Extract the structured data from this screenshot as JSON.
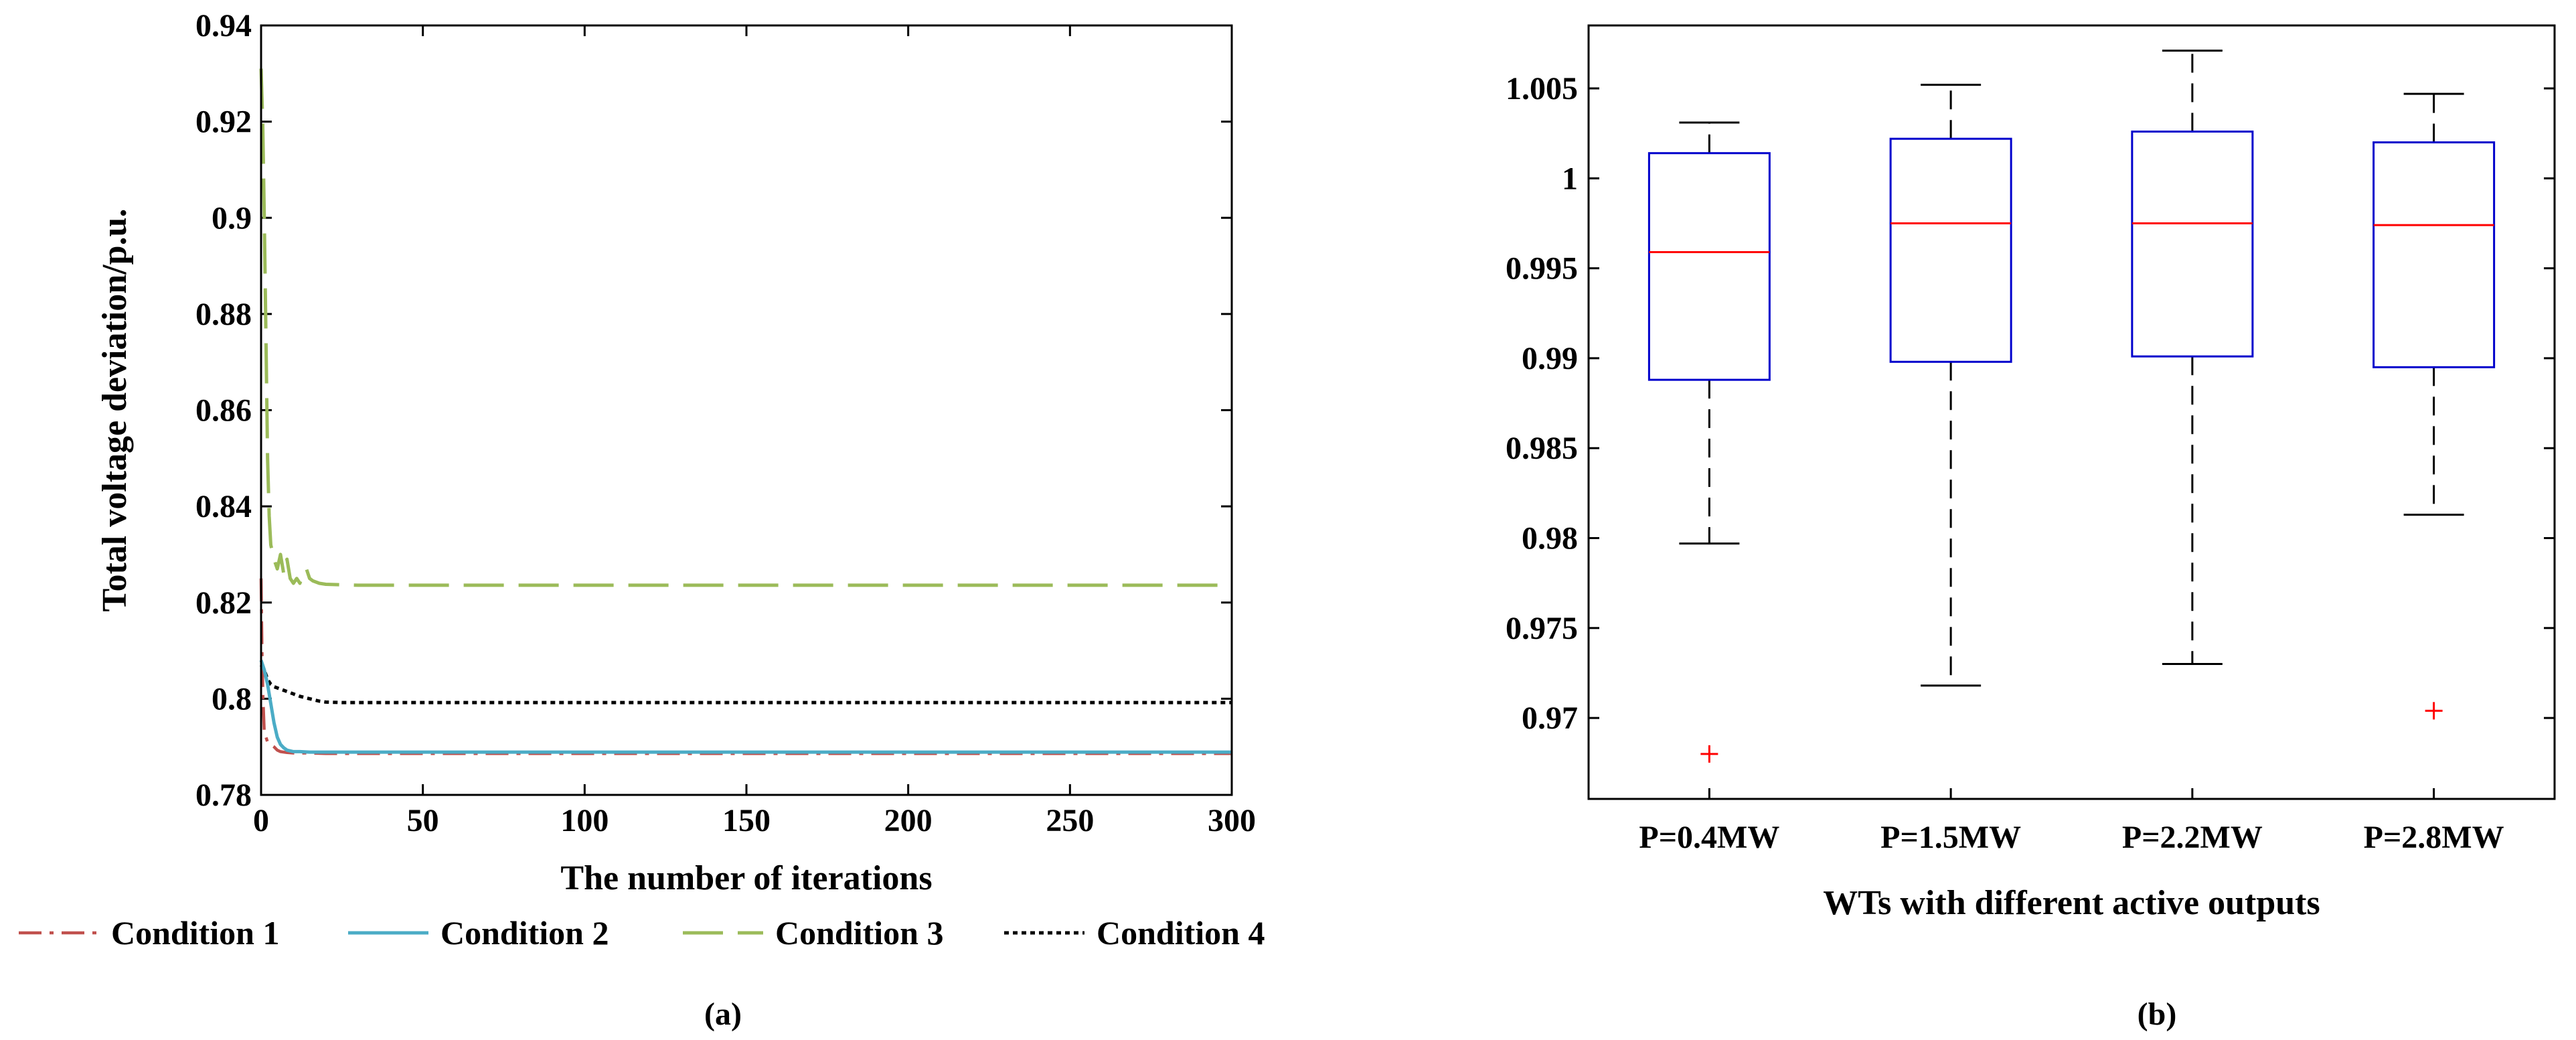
{
  "chart_data": [
    {
      "type": "line",
      "panel_label": "(a)",
      "xlabel": "The number of iterations",
      "ylabel": "Total voltage deviation/p.u.",
      "xlim": [
        0,
        300
      ],
      "ylim": [
        0.78,
        0.94
      ],
      "xticks": [
        0,
        50,
        100,
        150,
        200,
        250,
        300
      ],
      "xtick_labels": [
        "0",
        "50",
        "100",
        "150",
        "200",
        "250",
        "300"
      ],
      "yticks": [
        0.78,
        0.8,
        0.82,
        0.84,
        0.86,
        0.88,
        0.9,
        0.92,
        0.94
      ],
      "ytick_labels": [
        "0.78",
        "0.8",
        "0.82",
        "0.84",
        "0.86",
        "0.88",
        "0.9",
        "0.92",
        "0.94"
      ],
      "legend_position": "bottom",
      "series": [
        {
          "name": "Condition 1",
          "color": "#c0504d",
          "dash": "dashdot",
          "x": [
            0,
            0.3,
            0.6,
            1,
            1.5,
            2,
            3,
            4,
            5,
            6,
            8,
            10,
            15,
            20,
            30,
            50,
            100,
            200,
            300
          ],
          "y": [
            0.825,
            0.81,
            0.8,
            0.793,
            0.792,
            0.791,
            0.7905,
            0.79,
            0.7893,
            0.789,
            0.7888,
            0.7887,
            0.7887,
            0.7886,
            0.7886,
            0.7886,
            0.7886,
            0.7886,
            0.7886
          ]
        },
        {
          "name": "Condition 2",
          "color": "#4bacc6",
          "dash": "solid",
          "x": [
            0,
            1,
            2,
            3,
            4,
            5,
            6,
            7,
            8,
            10,
            12,
            15,
            20,
            30,
            50,
            100,
            200,
            300
          ],
          "y": [
            0.808,
            0.806,
            0.803,
            0.799,
            0.795,
            0.792,
            0.7905,
            0.7898,
            0.7893,
            0.789,
            0.789,
            0.7889,
            0.7889,
            0.7889,
            0.7889,
            0.7889,
            0.7889,
            0.7889
          ]
        },
        {
          "name": "Condition 3",
          "color": "#9bbb59",
          "dash": "longdash",
          "x": [
            0,
            0.5,
            1,
            1.5,
            2,
            2.5,
            3,
            4,
            5,
            6,
            7,
            8,
            9,
            10,
            11,
            12,
            13,
            14,
            15,
            16,
            18,
            20,
            25,
            30,
            50,
            100,
            200,
            300
          ],
          "y": [
            0.931,
            0.92,
            0.9,
            0.875,
            0.85,
            0.838,
            0.832,
            0.829,
            0.827,
            0.83,
            0.826,
            0.829,
            0.825,
            0.824,
            0.825,
            0.824,
            0.826,
            0.827,
            0.825,
            0.8245,
            0.824,
            0.8238,
            0.8237,
            0.8236,
            0.8236,
            0.8236,
            0.8236,
            0.8236
          ]
        },
        {
          "name": "Condition 4",
          "color": "#000000",
          "dash": "dotted",
          "x": [
            0,
            1,
            2,
            3,
            4,
            6,
            8,
            10,
            12,
            15,
            18,
            20,
            25,
            30,
            50,
            100,
            200,
            300
          ],
          "y": [
            0.807,
            0.806,
            0.804,
            0.803,
            0.8025,
            0.802,
            0.8015,
            0.801,
            0.8005,
            0.8,
            0.7995,
            0.7993,
            0.7992,
            0.7992,
            0.7992,
            0.7992,
            0.7992,
            0.7992
          ]
        }
      ]
    },
    {
      "type": "box",
      "panel_label": "(b)",
      "xlabel": "WTs with different active outputs",
      "ylabel": "",
      "ylim": [
        0.9655,
        1.0085
      ],
      "yticks": [
        0.97,
        0.975,
        0.98,
        0.985,
        0.99,
        0.995,
        1.0,
        1.005
      ],
      "ytick_labels": [
        "0.97",
        "0.975",
        "0.98",
        "0.985",
        "0.99",
        "0.995",
        "1",
        "1.005"
      ],
      "box_color": "#0000cc",
      "median_color": "#ff0000",
      "outlier_color": "#ff0000",
      "categories": [
        "P=0.4MW",
        "P=1.5MW",
        "P=2.2MW",
        "P=2.8MW"
      ],
      "boxes": [
        {
          "category": "P=0.4MW",
          "whisker_low": 0.9797,
          "q1": 0.9888,
          "median": 0.9959,
          "q3": 1.0014,
          "whisker_high": 1.0031,
          "outliers": [
            0.968
          ]
        },
        {
          "category": "P=1.5MW",
          "whisker_low": 0.9718,
          "q1": 0.9898,
          "median": 0.9975,
          "q3": 1.0022,
          "whisker_high": 1.0052,
          "outliers": []
        },
        {
          "category": "P=2.2MW",
          "whisker_low": 0.973,
          "q1": 0.9901,
          "median": 0.9975,
          "q3": 1.0026,
          "whisker_high": 1.0071,
          "outliers": []
        },
        {
          "category": "P=2.8MW",
          "whisker_low": 0.9813,
          "q1": 0.9895,
          "median": 0.9974,
          "q3": 1.002,
          "whisker_high": 1.0047,
          "outliers": [
            0.9704
          ]
        }
      ]
    }
  ]
}
